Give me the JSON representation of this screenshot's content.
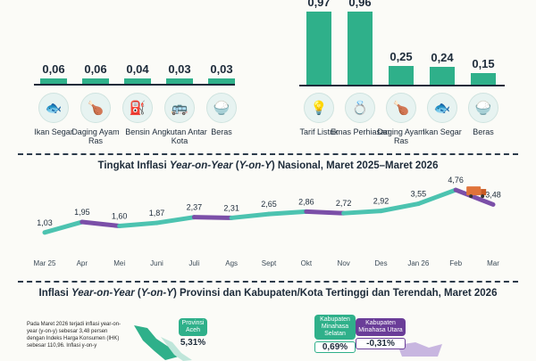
{
  "left_panel": {
    "items": [
      {
        "value": "0,06",
        "label": "Ikan Segar",
        "icon": "fish-icon",
        "glyph": "🐟"
      },
      {
        "value": "0,06",
        "label": "Daging Ayam Ras",
        "icon": "chicken-icon",
        "glyph": "🍗"
      },
      {
        "value": "0,04",
        "label": "Bensin",
        "icon": "fuel-icon",
        "glyph": "⛽"
      },
      {
        "value": "0,03",
        "label": "Angkutan Antar Kota",
        "icon": "bus-icon",
        "glyph": "🚌"
      },
      {
        "value": "0,03",
        "label": "Beras",
        "icon": "rice-icon",
        "glyph": "🍚"
      }
    ]
  },
  "right_panel": {
    "items": [
      {
        "value": "0,97",
        "num": 0.97,
        "label": "Tarif Listrik",
        "icon": "electricity-icon",
        "glyph": "💡"
      },
      {
        "value": "0,96",
        "num": 0.96,
        "label": "Emas Perhiasan",
        "icon": "gold-icon",
        "glyph": "💍"
      },
      {
        "value": "0,25",
        "num": 0.25,
        "label": "Daging Ayam Ras",
        "icon": "chicken-icon",
        "glyph": "🍗"
      },
      {
        "value": "0,24",
        "num": 0.24,
        "label": "Ikan Segar",
        "icon": "fish-icon",
        "glyph": "🐟"
      },
      {
        "value": "0,15",
        "num": 0.15,
        "label": "Beras",
        "icon": "rice-icon",
        "glyph": "🍚"
      }
    ]
  },
  "line_section": {
    "title_pre": "Tingkat Inflasi ",
    "title_em": "Year-on-Year",
    "title_mid": " (",
    "title_em2": "Y-on-Y",
    "title_post": ") Nasional, Maret 2025–Maret 2026"
  },
  "chart_data": {
    "type": "line",
    "categories": [
      "Mar 25",
      "Apr",
      "Mei",
      "Juni",
      "Juli",
      "Ags",
      "Sept",
      "Okt",
      "Nov",
      "Des",
      "Jan 26",
      "Feb",
      "Mar"
    ],
    "values": [
      1.03,
      1.95,
      1.6,
      1.87,
      2.37,
      2.31,
      2.65,
      2.86,
      2.72,
      2.92,
      3.55,
      4.76,
      3.48
    ],
    "labels": [
      "1,03",
      "1,95",
      "1,60",
      "1,87",
      "2,37",
      "2,31",
      "2,65",
      "2,86",
      "2,72",
      "2,92",
      "3,55",
      "4,76",
      "3,48"
    ],
    "ylim": [
      0,
      5
    ],
    "colors": {
      "up": "#4cc3b0",
      "down": "#7b4fa8"
    }
  },
  "bottom_section": {
    "title_pre": "Inflasi ",
    "title_em": "Year-on-Year",
    "title_mid": " (",
    "title_em2": "Y-on-Y",
    "title_post": ") Provinsi dan Kabupaten/Kota Tertinggi dan Terendah, Maret 2026",
    "paragraph": "Pada Maret 2026 terjadi inflasi year-on-year (y-on-y) sebesar 3,48 persen dengan Indeks Harga Konsumen (IHK) sebesar 110,96. Inflasi y-on-y",
    "callouts": [
      {
        "label": "Provinsi Aceh",
        "value": "5,31%"
      },
      {
        "label": "Kabupaten Minahasa Selatan",
        "value": "0,69%"
      },
      {
        "label": "Kabupaten Minahasa Utara",
        "value": "-0,31%"
      }
    ]
  }
}
